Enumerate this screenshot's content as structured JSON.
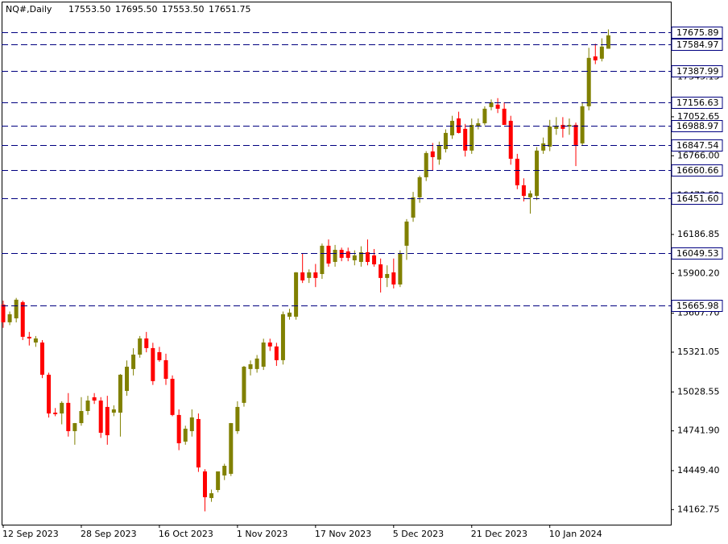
{
  "chart_data": {
    "type": "candlestick",
    "title": "NQ#,Daily",
    "header_values": [
      {
        "value": 17553.5,
        "label": "17553.50"
      },
      {
        "value": 17695.5,
        "label": "17695.50"
      },
      {
        "value": 17553.5,
        "label": "17553.50"
      },
      {
        "value": 17651.75,
        "label": "17651.75"
      }
    ],
    "categories": [
      "12 Sep 2023",
      null,
      null,
      null,
      null,
      null,
      null,
      null,
      null,
      null,
      null,
      null,
      "28 Sep 2023",
      null,
      null,
      null,
      null,
      null,
      null,
      null,
      null,
      null,
      null,
      null,
      "16 Oct 2023",
      null,
      null,
      null,
      null,
      null,
      null,
      null,
      null,
      null,
      null,
      null,
      "1 Nov 2023",
      null,
      null,
      null,
      null,
      null,
      null,
      null,
      null,
      null,
      null,
      null,
      "17 Nov 2023",
      null,
      null,
      null,
      null,
      null,
      null,
      null,
      null,
      null,
      null,
      null,
      "5 Dec 2023",
      null,
      null,
      null,
      null,
      null,
      null,
      null,
      null,
      null,
      null,
      null,
      "21 Dec 2023",
      null,
      null,
      null,
      null,
      null,
      null,
      null,
      null,
      null,
      null,
      null,
      "10 Jan 2024",
      null,
      null,
      null,
      null,
      null,
      null,
      null,
      null,
      null
    ],
    "open": [
      15671,
      15541,
      15570,
      15689,
      15434,
      15392,
      15392,
      15155,
      14876,
      14870,
      14948,
      14740,
      14799,
      14888,
      14989,
      14965,
      14918,
      14876,
      14876,
      15036,
      15197,
      15303,
      15422,
      15351,
      15321,
      15262,
      15125,
      14859,
      14663,
      14740,
      14829,
      14444,
      14248,
      14307,
      14414,
      14426,
      14740,
      14948,
      15197,
      15197,
      15214,
      15392,
      15363,
      15262,
      15582,
      15582,
      15908,
      15867,
      15908,
      15896,
      16104,
      15985,
      16074,
      16062,
      15997,
      15985,
      16056,
      16033,
      15967,
      15867,
      15908,
      15819,
      16104,
      16311,
      16460,
      16608,
      16798,
      16738,
      16815,
      16916,
      17041,
      16964,
      16804,
      16981,
      17005,
      17124,
      17142,
      17112,
      17023,
      16744,
      16549,
      16460,
      16471,
      16804,
      16833,
      16964,
      16993,
      16981,
      16993,
      16857,
      17130,
      17497,
      17480,
      17553.5
    ],
    "high": [
      15700,
      15620,
      15720,
      15700,
      15470,
      15440,
      15410,
      15170,
      14910,
      14960,
      15020,
      14800,
      14990,
      15000,
      15020,
      14990,
      15000,
      14930,
      15160,
      15260,
      15350,
      15440,
      15470,
      15390,
      15360,
      15310,
      15150,
      14900,
      14780,
      14900,
      14870,
      14460,
      14310,
      14440,
      14500,
      14800,
      14960,
      15220,
      15260,
      15300,
      15420,
      15420,
      15390,
      15620,
      15640,
      15910,
      16050,
      15930,
      15970,
      16120,
      16150,
      16110,
      16090,
      16090,
      16070,
      16100,
      16150,
      16080,
      16010,
      15960,
      16010,
      16070,
      16300,
      16500,
      16620,
      16800,
      16860,
      16870,
      16960,
      17060,
      17090,
      17000,
      17040,
      17040,
      17130,
      17180,
      17190,
      17160,
      17060,
      16780,
      16600,
      16510,
      16830,
      16900,
      17030,
      17050,
      17050,
      17040,
      17010,
      17160,
      17560,
      17590,
      17630,
      17695.5
    ],
    "low": [
      15500,
      15520,
      15540,
      15410,
      15370,
      15360,
      15130,
      14840,
      14850,
      14790,
      14700,
      14640,
      14780,
      14860,
      14940,
      14690,
      14640,
      14850,
      14700,
      15000,
      15150,
      15280,
      15320,
      15080,
      15250,
      15080,
      14850,
      14600,
      14640,
      14700,
      14440,
      14150,
      14220,
      14290,
      14380,
      14410,
      14720,
      14920,
      15150,
      15170,
      15190,
      15330,
      15220,
      15230,
      15560,
      15560,
      15830,
      15830,
      15800,
      15860,
      15950,
      15950,
      15990,
      15990,
      15960,
      15950,
      15960,
      15950,
      15760,
      15800,
      15790,
      15800,
      16000,
      16280,
      16420,
      16580,
      16660,
      16700,
      16790,
      16890,
      16930,
      16760,
      16780,
      16960,
      16990,
      17100,
      17080,
      17000,
      16700,
      16520,
      16430,
      16340,
      16440,
      16780,
      16800,
      16920,
      16900,
      16920,
      16690,
      16840,
      17100,
      17440,
      17460,
      17553.5
    ],
    "close": [
      15541,
      15600,
      15707,
      15434,
      15422,
      15422,
      15155,
      14870,
      14865,
      14948,
      14740,
      14799,
      14888,
      14965,
      14965,
      14728,
      14710,
      14900,
      15155,
      15214,
      15303,
      15422,
      15351,
      15108,
      15262,
      15125,
      14859,
      14651,
      14758,
      14841,
      14473,
      14254,
      14283,
      14444,
      14485,
      14799,
      14918,
      15214,
      15232,
      15274,
      15392,
      15363,
      15262,
      15600,
      15612,
      15908,
      15849,
      15908,
      15867,
      16104,
      15973,
      16074,
      16015,
      16015,
      16033,
      16056,
      15985,
      15967,
      15867,
      15896,
      15819,
      16045,
      16282,
      16460,
      16608,
      16786,
      16756,
      16845,
      16934,
      17023,
      16934,
      16804,
      16993,
      17005,
      17112,
      17159,
      17112,
      16993,
      16744,
      16549,
      16471,
      16489,
      16804,
      16857,
      16981,
      16981,
      16964,
      16993,
      16845,
      17130,
      17486,
      17468,
      17569,
      17651.75
    ],
    "up_color": "#808000",
    "down_color": "#ff0000",
    "ylim": [
      14052,
      17900
    ],
    "yticks": [
      14162.75,
      {
        "value": 14449.4,
        "label": "14449.40"
      },
      {
        "value": 14741.9,
        "label": "14741.90"
      },
      15028.55,
      15321.05,
      {
        "value": 15607.7,
        "label": "15607.70"
      },
      {
        "value": 15900.2,
        "label": "15900.20"
      },
      16186.85,
      {
        "value": 16473.5,
        "label": "16473.50"
      },
      {
        "value": 16766,
        "label": "16766.00"
      },
      17052.65,
      17345.15
    ],
    "levels": [
      17675.89,
      17584.97,
      17387.99,
      17156.63,
      16988.97,
      16847.54,
      16660.66,
      {
        "value": 16451.6,
        "label": "16451.60"
      },
      16049.53,
      15665.98
    ],
    "level_color": "#000080"
  }
}
